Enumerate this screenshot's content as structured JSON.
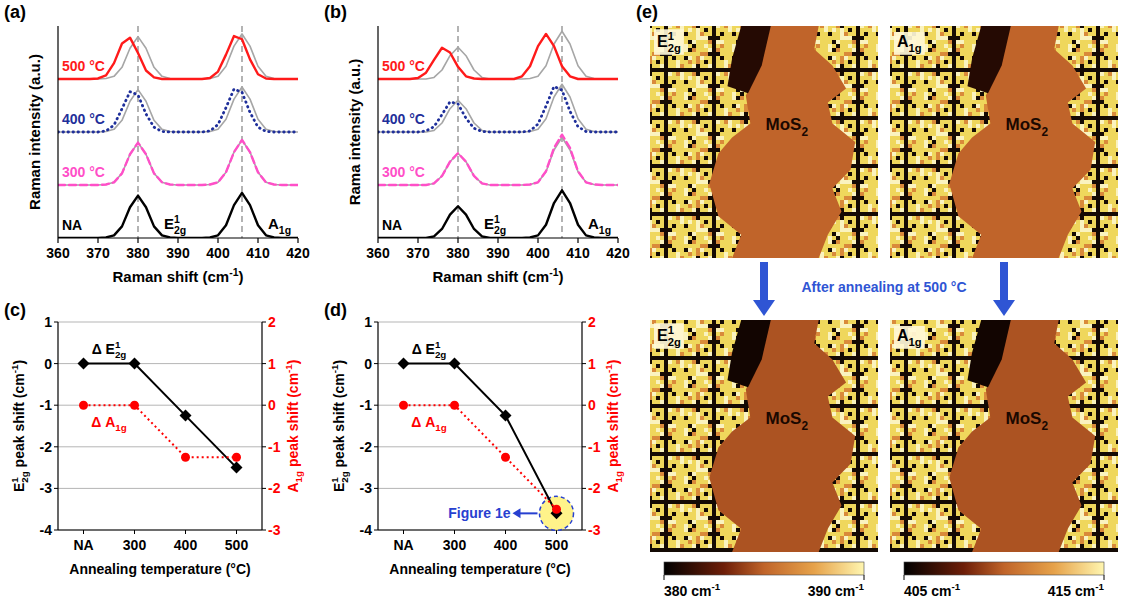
{
  "chart_data": [
    {
      "type": "line",
      "label": "(a)",
      "x": [
        360,
        362,
        364,
        366,
        368,
        370,
        372,
        374,
        376,
        378,
        380,
        382,
        384,
        386,
        388,
        390,
        392,
        394,
        396,
        398,
        400,
        402,
        404,
        406,
        408,
        410,
        412,
        414,
        416,
        418,
        420
      ],
      "xlim": [
        360,
        420
      ],
      "xticks": [
        360,
        370,
        380,
        390,
        400,
        410,
        420
      ],
      "ylim": [
        0,
        4
      ],
      "tick_labels": "x",
      "x_label": [
        "Raman shift (cm",
        {
          "sup": "-1"
        },
        ")"
      ],
      "y_label": "Raman intensity (a.u.)",
      "peaks": [
        {
          "x": 380,
          "label": [
            "E",
            {
              "sup": "1"
            },
            {
              "sub": "2g"
            }
          ]
        },
        {
          "x": 406,
          "label": [
            "A",
            {
              "sub": "1g"
            }
          ]
        }
      ],
      "series": [
        {
          "name": "NA",
          "color": "#000000",
          "line_style": "solid",
          "values": [
            0,
            0,
            0,
            0,
            0,
            0,
            0.01,
            0.05,
            0.22,
            0.58,
            0.8,
            0.58,
            0.22,
            0.05,
            0.01,
            0,
            0,
            0,
            0,
            0.01,
            0.05,
            0.24,
            0.62,
            0.85,
            0.62,
            0.24,
            0.05,
            0.01,
            0,
            0,
            0
          ]
        },
        {
          "color": "#a6a6a6",
          "line_style": "solid",
          "values": [
            1,
            1,
            1,
            1,
            1,
            1,
            1.01,
            1.05,
            1.22,
            1.58,
            1.8,
            1.58,
            1.22,
            1.05,
            1.01,
            1,
            1,
            1,
            1,
            1.01,
            1.05,
            1.24,
            1.62,
            1.85,
            1.62,
            1.24,
            1.05,
            1.01,
            1,
            1,
            1
          ]
        },
        {
          "name": "300 °C",
          "color": "#ff4fc8",
          "line_style": "dashed",
          "values": [
            1,
            1,
            1,
            1,
            1,
            1,
            1.01,
            1.05,
            1.22,
            1.58,
            1.8,
            1.58,
            1.22,
            1.05,
            1.01,
            1,
            1,
            1,
            1,
            1.01,
            1.05,
            1.24,
            1.62,
            1.85,
            1.62,
            1.24,
            1.05,
            1.01,
            1,
            1,
            1
          ]
        },
        {
          "color": "#a6a6a6",
          "line_style": "solid",
          "values": [
            2,
            2,
            2,
            2,
            2,
            2,
            2.01,
            2.05,
            2.22,
            2.58,
            2.8,
            2.58,
            2.22,
            2.05,
            2.01,
            2,
            2,
            2,
            2,
            2.01,
            2.05,
            2.24,
            2.62,
            2.85,
            2.62,
            2.24,
            2.05,
            2.01,
            2,
            2,
            2
          ]
        },
        {
          "name": "400 °C",
          "color": "#1f2f9a",
          "line_style": "dotted",
          "values": [
            2,
            2,
            2,
            2,
            2,
            2,
            2.02,
            2.13,
            2.44,
            2.76,
            2.7,
            2.34,
            2.09,
            2.01,
            2,
            2,
            2,
            2,
            2,
            2.02,
            2.14,
            2.46,
            2.81,
            2.75,
            2.37,
            2.09,
            2.01,
            2,
            2,
            2,
            2
          ]
        },
        {
          "color": "#a6a6a6",
          "line_style": "solid",
          "values": [
            3,
            3,
            3,
            3,
            3,
            3,
            3.01,
            3.05,
            3.22,
            3.58,
            3.8,
            3.58,
            3.22,
            3.05,
            3.01,
            3,
            3,
            3,
            3,
            3.01,
            3.05,
            3.24,
            3.62,
            3.85,
            3.62,
            3.24,
            3.05,
            3.01,
            3,
            3,
            3
          ]
        },
        {
          "name": "500 °C",
          "color": "#ff1a1a",
          "line_style": "solid",
          "values": [
            3,
            3,
            3,
            3,
            3,
            3.01,
            3.07,
            3.3,
            3.67,
            3.78,
            3.49,
            3.16,
            3.03,
            3,
            3,
            3,
            3,
            3,
            3,
            3.02,
            3.14,
            3.46,
            3.81,
            3.75,
            3.37,
            3.09,
            3.01,
            3,
            3,
            3,
            3
          ]
        }
      ]
    },
    {
      "type": "line",
      "label": "(b)",
      "x": [
        360,
        362,
        364,
        366,
        368,
        370,
        372,
        374,
        376,
        378,
        380,
        382,
        384,
        386,
        388,
        390,
        392,
        394,
        396,
        398,
        400,
        402,
        404,
        406,
        408,
        410,
        412,
        414,
        416,
        418,
        420
      ],
      "xlim": [
        360,
        420
      ],
      "xticks": [
        360,
        370,
        380,
        390,
        400,
        410,
        420
      ],
      "ylim": [
        0,
        4
      ],
      "tick_labels": "x",
      "x_label": [
        "Raman shift (cm",
        {
          "sup": "-1"
        },
        ")"
      ],
      "y_label": "Rama intensity (a.u.)",
      "peaks": [
        {
          "x": 380,
          "label": [
            "E",
            {
              "sup": "1"
            },
            {
              "sub": "2g"
            }
          ]
        },
        {
          "x": 406,
          "label": [
            "A",
            {
              "sub": "1g"
            }
          ]
        }
      ],
      "series": [
        {
          "name": "NA",
          "color": "#000000",
          "line_style": "solid",
          "values": [
            0,
            0,
            0,
            0,
            0,
            0,
            0,
            0.03,
            0.17,
            0.44,
            0.6,
            0.44,
            0.17,
            0.03,
            0,
            0,
            0,
            0,
            0,
            0.01,
            0.05,
            0.25,
            0.66,
            0.9,
            0.66,
            0.25,
            0.05,
            0.01,
            0,
            0,
            0
          ]
        },
        {
          "color": "#a6a6a6",
          "line_style": "solid",
          "values": [
            1,
            1,
            1,
            1,
            1,
            1,
            1,
            1.03,
            1.17,
            1.44,
            1.6,
            1.44,
            1.17,
            1.03,
            1,
            1,
            1,
            1,
            1,
            1.01,
            1.05,
            1.25,
            1.66,
            1.9,
            1.66,
            1.25,
            1.05,
            1.01,
            1,
            1,
            1
          ]
        },
        {
          "name": "300 °C",
          "color": "#ff4fc8",
          "line_style": "dashed",
          "values": [
            1,
            1,
            1,
            1,
            1,
            1,
            1,
            1.03,
            1.17,
            1.44,
            1.6,
            1.44,
            1.17,
            1.03,
            1,
            1,
            1,
            1,
            1,
            1.01,
            1.05,
            1.26,
            1.7,
            1.95,
            1.7,
            1.26,
            1.05,
            1.01,
            1,
            1,
            1
          ]
        },
        {
          "color": "#a6a6a6",
          "line_style": "solid",
          "values": [
            2,
            2,
            2,
            2,
            2,
            2,
            2,
            2.03,
            2.17,
            2.44,
            2.6,
            2.44,
            2.17,
            2.03,
            2,
            2,
            2,
            2,
            2,
            2.01,
            2.05,
            2.25,
            2.66,
            2.9,
            2.66,
            2.25,
            2.05,
            2.01,
            2,
            2,
            2
          ]
        },
        {
          "name": "400 °C",
          "color": "#1f2f9a",
          "line_style": "dotted",
          "values": [
            2,
            2,
            2,
            2,
            2,
            2,
            2.02,
            2.1,
            2.33,
            2.57,
            2.53,
            2.26,
            2.07,
            2.01,
            2,
            2,
            2,
            2,
            2,
            2.02,
            2.15,
            2.49,
            2.86,
            2.79,
            2.39,
            2.1,
            2.01,
            2,
            2,
            2,
            2
          ]
        },
        {
          "color": "#a6a6a6",
          "line_style": "solid",
          "values": [
            3,
            3,
            3,
            3,
            3,
            3,
            3,
            3.03,
            3.17,
            3.44,
            3.6,
            3.44,
            3.17,
            3.03,
            3,
            3,
            3,
            3,
            3,
            3.01,
            3.05,
            3.25,
            3.66,
            3.9,
            3.66,
            3.25,
            3.05,
            3.01,
            3,
            3,
            3
          ]
        },
        {
          "name": "500 °C",
          "color": "#ff1a1a",
          "line_style": "solid",
          "values": [
            3,
            3,
            3,
            3,
            3,
            3.02,
            3.12,
            3.36,
            3.59,
            3.5,
            3.23,
            3.05,
            3.01,
            3,
            3,
            3,
            3,
            3,
            3.05,
            3.24,
            3.62,
            3.85,
            3.62,
            3.24,
            3.05,
            3,
            3,
            3,
            3,
            3,
            3
          ]
        }
      ]
    },
    {
      "type": "line",
      "label": "(c)",
      "categories": [
        "NA",
        "300",
        "400",
        "500"
      ],
      "x_label": "Annealing temperature (°C)",
      "y_label": [
        "E",
        {
          "sup": "1"
        },
        {
          "sub": "2g"
        },
        " peak shift (cm",
        {
          "sup": "-1"
        },
        ")"
      ],
      "y2_label": [
        "A",
        {
          "sub": "1g"
        },
        " peak shift (cm",
        {
          "sup": "-1"
        },
        ")"
      ],
      "ylim": [
        -4,
        1
      ],
      "yticks": [
        -4,
        -3,
        -2,
        -1,
        0,
        1
      ],
      "y2lim": [
        -3,
        2
      ],
      "y2ticks": [
        -3,
        -2,
        -1,
        0,
        1,
        2
      ],
      "grid": true,
      "series": [
        {
          "name": [
            "Δ E",
            {
              "sup": "1"
            },
            {
              "sub": "2g"
            }
          ],
          "color": "#000000",
          "marker": "diamond",
          "line_style": "solid",
          "values": [
            0,
            0,
            -1.25,
            -2.5
          ]
        },
        {
          "name": [
            "Δ A",
            {
              "sub": "1g"
            }
          ],
          "color": "#ff0000",
          "marker": "circle",
          "line_style": "dotted",
          "axis": "y2",
          "values": [
            0,
            0,
            -1.25,
            -1.25
          ]
        }
      ]
    },
    {
      "type": "line",
      "label": "(d)",
      "categories": [
        "NA",
        "300",
        "400",
        "500"
      ],
      "x_label": "Annealing temperature (°C)",
      "y_label": [
        "E",
        {
          "sup": "1"
        },
        {
          "sub": "2g"
        },
        " peak shift (cm",
        {
          "sup": "-1"
        },
        ")"
      ],
      "y2_label": [
        "A",
        {
          "sub": "1g"
        },
        " peak shift (cm",
        {
          "sup": "-1"
        },
        ")"
      ],
      "ylim": [
        -4,
        1
      ],
      "yticks": [
        -4,
        -3,
        -2,
        -1,
        0,
        1
      ],
      "y2lim": [
        -3,
        2
      ],
      "y2ticks": [
        -3,
        -2,
        -1,
        0,
        1,
        2
      ],
      "grid": true,
      "series": [
        {
          "name": [
            "Δ E",
            {
              "sup": "1"
            },
            {
              "sub": "2g"
            }
          ],
          "color": "#000000",
          "marker": "diamond",
          "line_style": "solid",
          "values": [
            0,
            0,
            -1.25,
            -3.6
          ]
        },
        {
          "name": [
            "Δ A",
            {
              "sub": "1g"
            }
          ],
          "color": "#ff0000",
          "marker": "circle",
          "line_style": "dotted",
          "axis": "y2",
          "values": [
            0,
            0,
            -1.25,
            -2.5
          ]
        }
      ],
      "annotations": [
        {
          "text": "Figure 1e",
          "x": "500",
          "y": -3.6
        }
      ]
    },
    {
      "type": "heatmap",
      "label": "(e)",
      "annotation": "After annealing at 500 °C",
      "maps": [
        {
          "title": [
            "E",
            {
              "sup": "1"
            },
            {
              "sub": "2g"
            }
          ],
          "colorbar": 0,
          "regions": [
            {
              "label": [
                "MoS",
                {
                  "sub": "2"
                }
              ],
              "value": 385
            },
            {
              "value": 381
            }
          ]
        },
        {
          "title": [
            "A",
            {
              "sub": "1g"
            }
          ],
          "colorbar": 1,
          "regions": [
            {
              "label": [
                "MoS",
                {
                  "sub": "2"
                }
              ],
              "value": 410
            },
            {
              "value": 406
            }
          ]
        },
        {
          "title": [
            "E",
            {
              "sup": "1"
            },
            {
              "sub": "2g"
            }
          ],
          "colorbar": 0,
          "regions": [
            {
              "label": [
                "MoS",
                {
                  "sub": "2"
                }
              ],
              "value": 384.5
            },
            {
              "value": 380.5
            }
          ]
        },
        {
          "title": [
            "A",
            {
              "sub": "1g"
            }
          ],
          "colorbar": 1,
          "regions": [
            {
              "label": [
                "MoS",
                {
                  "sub": "2"
                }
              ],
              "value": 409.5
            },
            {
              "value": 405.5
            }
          ]
        }
      ],
      "colorbars": [
        {
          "range": [
            380,
            390
          ],
          "ticks": [
            {
              "value": 380,
              "label": [
                "380 cm",
                {
                  "sup": "-1"
                }
              ]
            },
            {
              "value": 390,
              "label": [
                "390 cm",
                {
                  "sup": "-1"
                }
              ]
            }
          ]
        },
        {
          "range": [
            405,
            415
          ],
          "ticks": [
            {
              "value": 405,
              "label": [
                "405 cm",
                {
                  "sup": "-1"
                }
              ]
            },
            {
              "value": 415,
              "label": [
                "415 cm",
                {
                  "sup": "-1"
                }
              ]
            }
          ]
        }
      ]
    }
  ]
}
